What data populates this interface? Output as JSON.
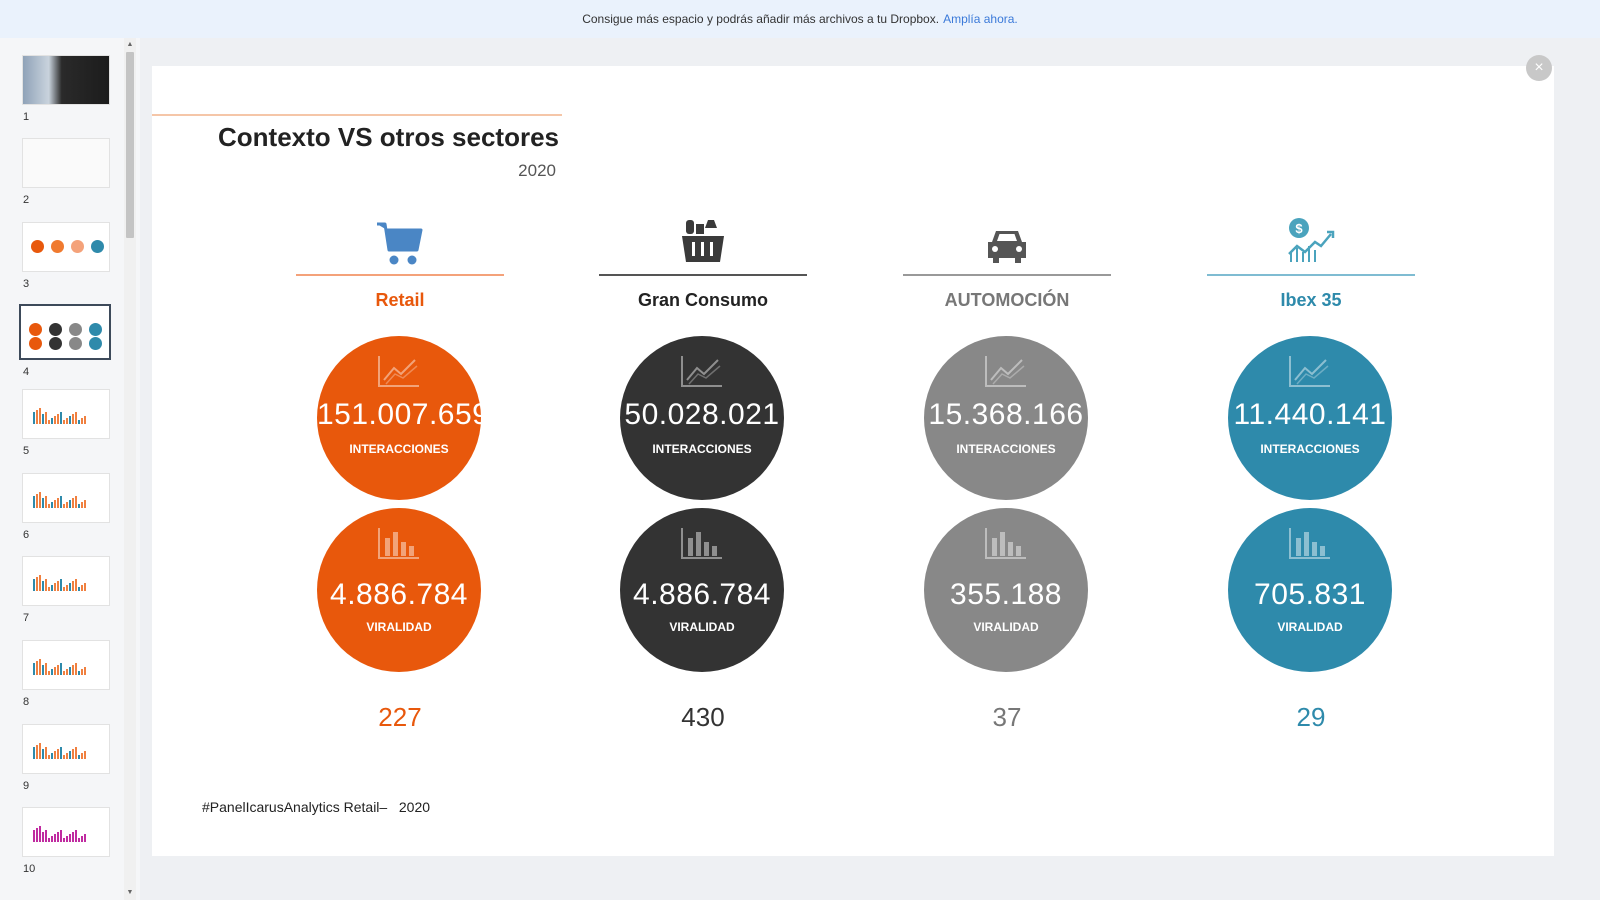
{
  "banner": {
    "text": "Consigue más espacio y podrás añadir más archivos a tu Dropbox.",
    "link": "Amplía ahora."
  },
  "thumbnails": [
    {
      "num": "1"
    },
    {
      "num": "2"
    },
    {
      "num": "3"
    },
    {
      "num": "4"
    },
    {
      "num": "5"
    },
    {
      "num": "6"
    },
    {
      "num": "7"
    },
    {
      "num": "8"
    },
    {
      "num": "9"
    },
    {
      "num": "10"
    }
  ],
  "active_thumbnail": 4,
  "slide": {
    "title": "Contexto VS otros sectores",
    "year": "2020",
    "footer": "#PanelIcarusAnalytics Retail–   2020",
    "columns": [
      {
        "name": "Retail",
        "color": "#e8580c",
        "line_color": "#f4a27a",
        "name_color": "#e8580c",
        "icon": "shopping-cart-icon",
        "interacciones": "151.007.659",
        "interacciones_label": "INTERACCIONES",
        "viralidad": "4.886.784",
        "viralidad_label": "VIRALIDAD",
        "count": "227"
      },
      {
        "name": "Gran Consumo",
        "color": "#333333",
        "line_color": "#555555",
        "name_color": "#222222",
        "icon": "grocery-basket-icon",
        "interacciones": "50.028.021",
        "interacciones_label": "INTERACCIONES",
        "viralidad": "4.886.784",
        "viralidad_label": "VIRALIDAD",
        "count": "430"
      },
      {
        "name": "AUTOMOCIÓN",
        "color": "#888888",
        "line_color": "#999999",
        "name_color": "#777777",
        "icon": "car-icon",
        "interacciones": "15.368.166",
        "interacciones_label": "INTERACCIONES",
        "viralidad": "355.188",
        "viralidad_label": "VIRALIDAD",
        "count": "37"
      },
      {
        "name": "Ibex 35",
        "color": "#2e8aab",
        "line_color": "#7fbcd2",
        "name_color": "#2e8aab",
        "icon": "money-growth-icon",
        "interacciones": "11.440.141",
        "interacciones_label": "INTERACCIONES",
        "viralidad": "705.831",
        "viralidad_label": "VIRALIDAD",
        "count": "29"
      }
    ]
  }
}
